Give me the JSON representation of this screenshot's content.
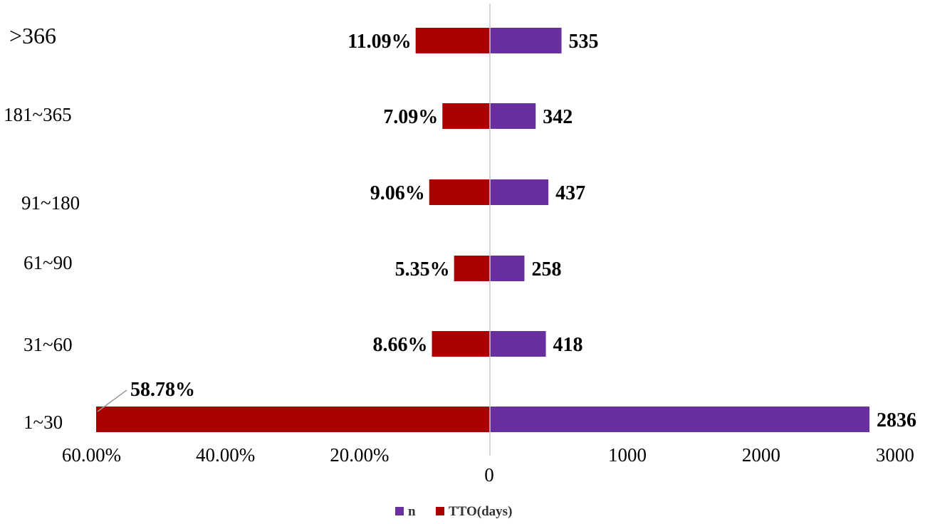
{
  "chart_data": {
    "type": "bar",
    "orientation": "horizontal",
    "layout": "back-to-back (diverging from center axis)",
    "categories": [
      "1~30",
      "31~60",
      "61~90",
      "91~180",
      "181~365",
      ">366"
    ],
    "series": [
      {
        "name": "n",
        "side": "right",
        "color": "#6a2f9e",
        "values": [
          2836,
          418,
          258,
          437,
          342,
          535
        ],
        "labels": [
          "2836",
          "418",
          "258",
          "437",
          "342",
          "535"
        ]
      },
      {
        "name": "TTO(days)",
        "side": "left",
        "color": "#a80000",
        "values": [
          58.78,
          8.66,
          5.35,
          9.06,
          7.09,
          11.09
        ],
        "labels": [
          "58.78%",
          "8.66%",
          "5.35%",
          "9.06%",
          "7.09%",
          "11.09%"
        ]
      }
    ],
    "left_axis": {
      "ticks": [
        "60.00%",
        "40.00%",
        "20.00%"
      ],
      "tick_values": [
        60,
        40,
        20
      ]
    },
    "right_axis": {
      "ticks": [
        "1000",
        "2000",
        "3000"
      ],
      "tick_values": [
        1000,
        2000,
        3000
      ]
    },
    "center_label": "0",
    "legend": {
      "position": "bottom",
      "items": [
        "n",
        "TTO(days)"
      ]
    },
    "grid": false
  }
}
